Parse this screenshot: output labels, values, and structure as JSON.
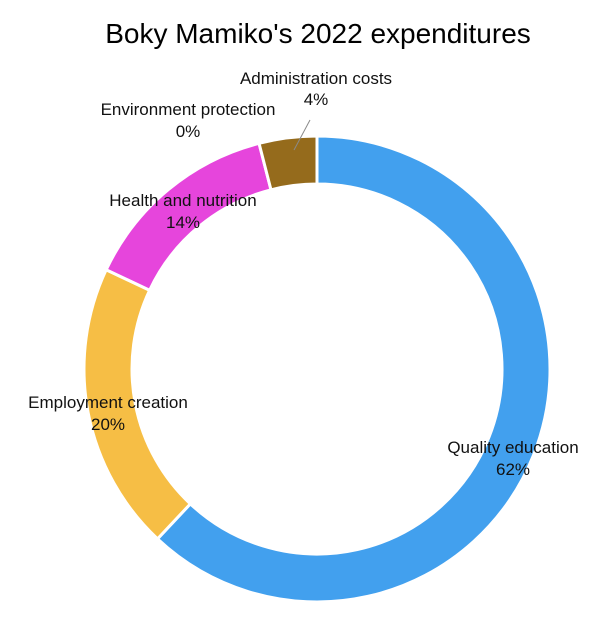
{
  "chart_data": {
    "type": "pie",
    "variant": "donut",
    "title": "Boky Mamiko's 2022 expenditures",
    "legend": "none",
    "start_at": "top, clockwise",
    "slices": [
      {
        "label": "Quality education",
        "value": 62,
        "percent_label": "62%",
        "color": "#42A0EE"
      },
      {
        "label": "Employment creation",
        "value": 20,
        "percent_label": "20%",
        "color": "#F6BE45"
      },
      {
        "label": "Health and nutrition",
        "value": 14,
        "percent_label": "14%",
        "color": "#E645DC"
      },
      {
        "label": "Environment protection",
        "value": 0,
        "percent_label": "0%",
        "color": "#6E1E6E"
      },
      {
        "label": "Administration costs",
        "value": 4,
        "percent_label": "4%",
        "color": "#956B1C"
      }
    ]
  }
}
